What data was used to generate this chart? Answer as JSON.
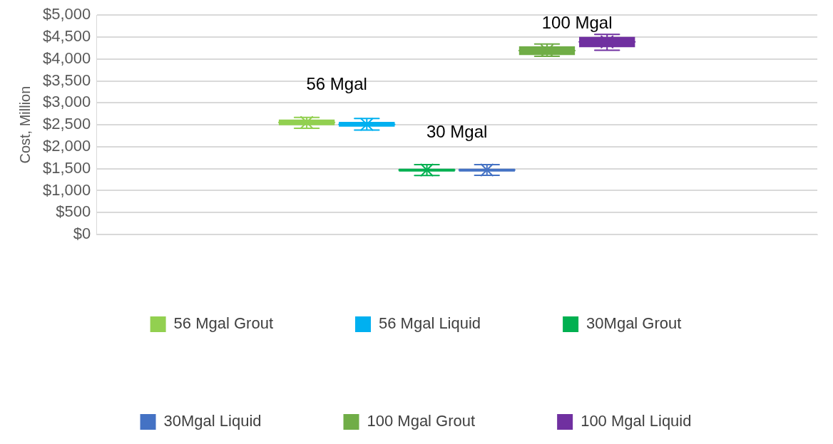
{
  "chart_data": {
    "type": "box",
    "ylabel": "Cost, Million",
    "categories": [
      null
    ],
    "ylim": [
      0,
      5000
    ],
    "yticks": [
      {
        "value": 0,
        "label": "$0"
      },
      {
        "value": 500,
        "label": "$500"
      },
      {
        "value": 1000,
        "label": "$1,000"
      },
      {
        "value": 1500,
        "label": "$1,500"
      },
      {
        "value": 2000,
        "label": "$2,000"
      },
      {
        "value": 2500,
        "label": "$2,500"
      },
      {
        "value": 3000,
        "label": "$3,000"
      },
      {
        "value": 3500,
        "label": "$3,500"
      },
      {
        "value": 4000,
        "label": "$4,000"
      },
      {
        "value": 4500,
        "label": "$4,500"
      },
      {
        "value": 5000,
        "label": "$5,000"
      }
    ],
    "grid": "y",
    "legend": "bottom",
    "tick_labels": "y",
    "series": [
      {
        "name": "56 Mgal Grout",
        "color": "#92d050",
        "boxes": [
          {
            "low": 2420,
            "q1": 2490,
            "median": 2555,
            "q3": 2620,
            "high": 2670,
            "mean": 2555
          }
        ]
      },
      {
        "name": "56 Mgal Liquid",
        "color": "#00b0f0",
        "boxes": [
          {
            "low": 2380,
            "q1": 2455,
            "median": 2510,
            "q3": 2565,
            "high": 2645,
            "mean": 2510
          }
        ]
      },
      {
        "name": "30Mgal Grout",
        "color": "#00b050",
        "boxes": [
          {
            "low": 1345,
            "q1": 1435,
            "median": 1470,
            "q3": 1500,
            "high": 1590,
            "mean": 1470
          }
        ]
      },
      {
        "name": "30Mgal Liquid",
        "color": "#4472c4",
        "boxes": [
          {
            "low": 1350,
            "q1": 1435,
            "median": 1470,
            "q3": 1500,
            "high": 1590,
            "mean": 1470
          }
        ]
      },
      {
        "name": "100 Mgal Grout",
        "color": "#70ad47",
        "boxes": [
          {
            "low": 4060,
            "q1": 4090,
            "median": 4190,
            "q3": 4290,
            "high": 4340,
            "mean": 4190
          }
        ]
      },
      {
        "name": "100 Mgal Liquid",
        "color": "#7030a0",
        "boxes": [
          {
            "low": 4200,
            "q1": 4270,
            "median": 4390,
            "q3": 4505,
            "high": 4560,
            "mean": 4390
          }
        ]
      }
    ],
    "annotations": [
      "56 Mgal",
      "30 Mgal",
      "100 Mgal"
    ]
  }
}
